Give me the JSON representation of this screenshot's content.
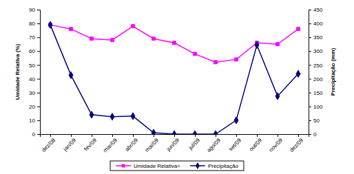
{
  "chart_data": {
    "type": "line",
    "y_label": "Umidade Relativa (%)",
    "y2_label": "Precipitação (mm)",
    "categories": [
      "dez/08",
      "jan/09",
      "fev/09",
      "mar/09",
      "abr/09",
      "mai/09",
      "jun/09",
      "jul/09",
      "ago/09",
      "set/09",
      "out/09",
      "nov/09",
      "dez/09"
    ],
    "ylim": [
      0,
      90
    ],
    "yticks": [
      0,
      10,
      20,
      30,
      40,
      50,
      60,
      70,
      80,
      90
    ],
    "y2lim": [
      0,
      450
    ],
    "y2ticks": [
      0,
      50,
      100,
      150,
      200,
      250,
      300,
      350,
      400,
      450
    ],
    "grid": false,
    "legend": "bottom",
    "series": [
      {
        "name": "Umidade Relativa=",
        "color": "#ff00ff",
        "marker": "square",
        "axis": "y",
        "values": [
          79,
          76,
          69,
          68,
          78,
          69,
          66,
          58,
          52,
          54,
          66,
          65,
          76
        ]
      },
      {
        "name": "Precipitação",
        "color": "#000080",
        "marker": "diamond",
        "axis": "y2",
        "values": [
          395,
          213,
          70,
          63,
          65,
          5,
          0,
          0,
          0,
          50,
          322,
          137,
          218
        ]
      }
    ]
  }
}
